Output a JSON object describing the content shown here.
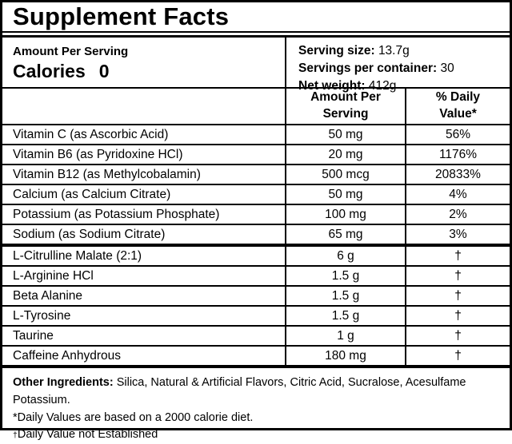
{
  "title": "Supplement Facts",
  "serving_info": {
    "amount_per_serving_label": "Amount Per Serving",
    "calories_label": "Calories",
    "calories_value": "0",
    "serving_size_label": "Serving size:",
    "serving_size_value": "13.7g",
    "servings_per_container_label": "Servings per container:",
    "servings_per_container_value": "30",
    "net_weight_label": "Net weight:",
    "net_weight_value": "412g"
  },
  "table": {
    "headers": {
      "amount": "Amount Per Serving",
      "daily_value": "% Daily Value*"
    },
    "vitamins": [
      {
        "name": "Vitamin C (as Ascorbic Acid)",
        "amount": "50 mg",
        "dv": "56%"
      },
      {
        "name": "Vitamin B6 (as Pyridoxine HCl)",
        "amount": "20 mg",
        "dv": "1176%"
      },
      {
        "name": "Vitamin B12 (as Methylcobalamin)",
        "amount": "500 mcg",
        "dv": "20833%"
      },
      {
        "name": "Calcium (as Calcium Citrate)",
        "amount": "50 mg",
        "dv": "4%"
      },
      {
        "name": "Potassium (as Potassium Phosphate)",
        "amount": "100 mg",
        "dv": "2%"
      },
      {
        "name": "Sodium (as Sodium Citrate)",
        "amount": "65 mg",
        "dv": "3%"
      }
    ],
    "actives": [
      {
        "name": "L-Citrulline Malate (2:1)",
        "amount": "6 g",
        "dv": "†"
      },
      {
        "name": "L-Arginine HCl",
        "amount": "1.5 g",
        "dv": "†"
      },
      {
        "name": "Beta Alanine",
        "amount": "1.5 g",
        "dv": "†"
      },
      {
        "name": "L-Tyrosine",
        "amount": "1.5 g",
        "dv": "†"
      },
      {
        "name": "Taurine",
        "amount": "1 g",
        "dv": "†"
      },
      {
        "name": "Caffeine Anhydrous",
        "amount": "180 mg",
        "dv": "†"
      }
    ]
  },
  "footer": {
    "other_ingredients_label": "Other Ingredients:",
    "other_ingredients_text": "Silica, Natural & Artificial Flavors, Citric Acid, Sucralose, Acesulfame Potassium.",
    "daily_values_note": "*Daily Values are based on a 2000 calorie diet.",
    "dagger_symbol": "†",
    "dagger_note": "Daily Value not Established"
  },
  "colors": {
    "border": "#000000",
    "background": "#ffffff",
    "text": "#000000"
  }
}
